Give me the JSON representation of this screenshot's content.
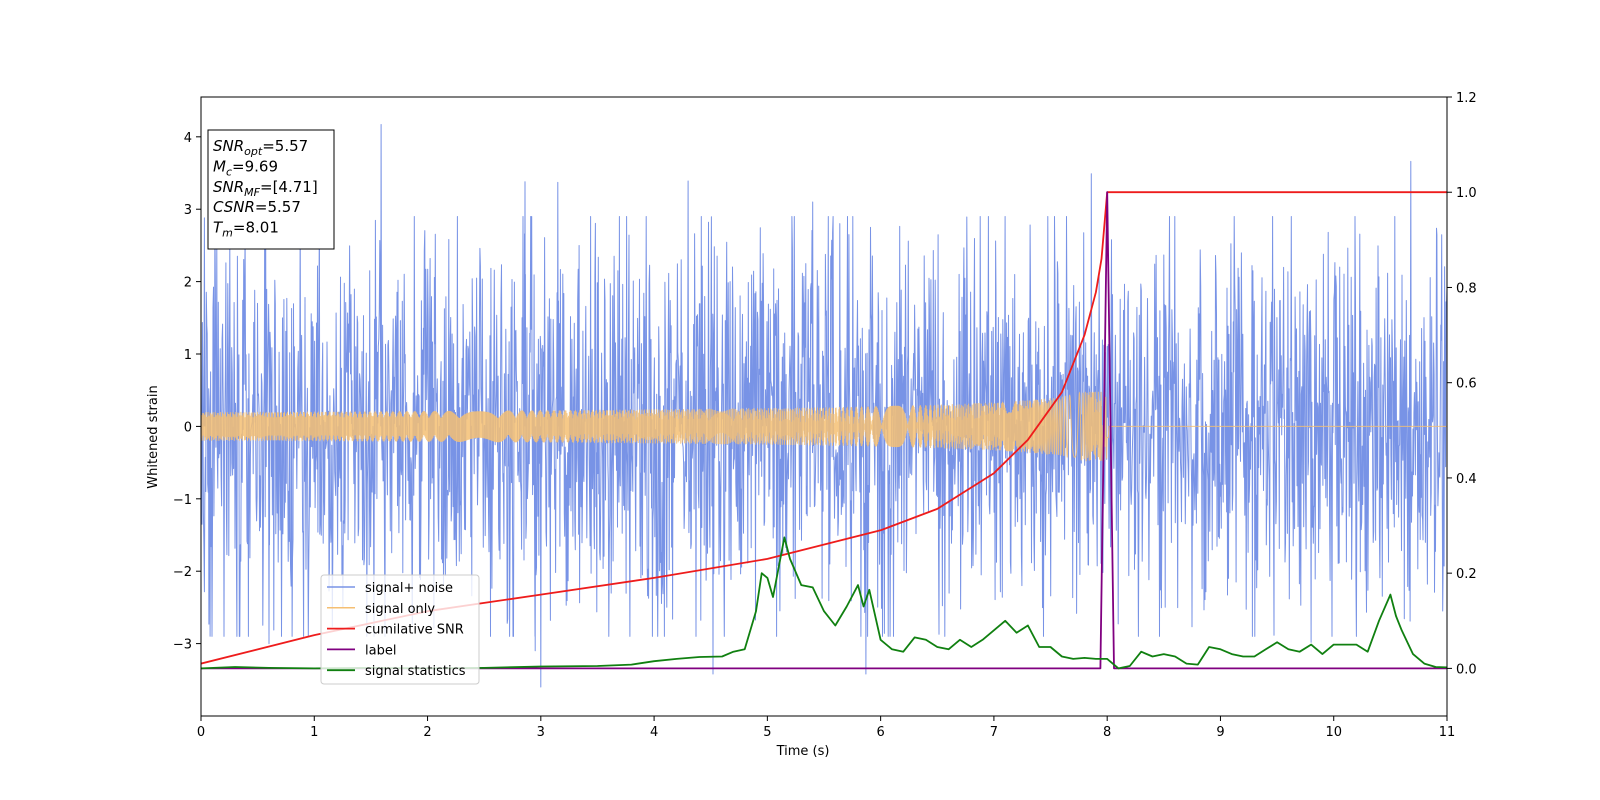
{
  "chart_data": {
    "type": "line",
    "xlabel": "Time (s)",
    "ylabel": "Whitened strain",
    "xlim": [
      0,
      11
    ],
    "ylim": [
      -4.0,
      4.55
    ],
    "y2lim": [
      -0.1,
      1.2
    ],
    "x_ticks": [
      "0",
      "1",
      "2",
      "3",
      "4",
      "5",
      "6",
      "7",
      "8",
      "9",
      "10",
      "11"
    ],
    "y_ticks": [
      "−3",
      "−2",
      "−1",
      "0",
      "1",
      "2",
      "3",
      "4"
    ],
    "y2_ticks": [
      "0.0",
      "0.2",
      "0.4",
      "0.6",
      "0.8",
      "1.0",
      "1.2"
    ],
    "legend_position": "lower-left",
    "info_box": [
      {
        "main": "SNR",
        "sub": "opt",
        "value": "=5.57"
      },
      {
        "main": "M",
        "sub": "c",
        "value": "=9.69"
      },
      {
        "main": "SNR",
        "sub": "MF",
        "value": "=[4.71]"
      },
      {
        "main": "CSNR",
        "sub": "",
        "value": "=5.57"
      },
      {
        "main": "T",
        "sub": "m",
        "value": "=8.01"
      }
    ],
    "series": [
      {
        "name": "signal+ noise",
        "color": "#7893e6",
        "axis": "left",
        "style": "noise",
        "duration": 11,
        "typical_amplitude": 1.8,
        "spikes": [
          {
            "x": 1.59,
            "y": 4.17
          },
          {
            "x": 10.68,
            "y": 3.66
          },
          {
            "x": 0.03,
            "y": 2.88
          },
          {
            "x": 2.86,
            "y": 3.38
          },
          {
            "x": 3.15,
            "y": 3.37
          },
          {
            "x": 4.3,
            "y": 3.39
          },
          {
            "x": 5.4,
            "y": 3.1
          },
          {
            "x": 7.86,
            "y": 3.49
          },
          {
            "x": 3.0,
            "y": -3.6
          },
          {
            "x": 4.52,
            "y": -3.42
          },
          {
            "x": 5.87,
            "y": -3.42
          },
          {
            "x": 0.07,
            "y": -2.73
          },
          {
            "x": 0.6,
            "y": -3.0
          },
          {
            "x": 2.95,
            "y": -3.1
          },
          {
            "x": 9.8,
            "y": -2.98
          }
        ]
      },
      {
        "name": "signal only",
        "color": "#f5bf73",
        "axis": "left",
        "style": "chirp",
        "merger_time": 8.01,
        "peak_amplitude": 0.48
      },
      {
        "name": "cumilative SNR",
        "color": "#ee1c1c",
        "axis": "right",
        "points": [
          [
            0,
            0.01
          ],
          [
            1,
            0.07
          ],
          [
            2,
            0.12
          ],
          [
            3,
            0.155
          ],
          [
            4,
            0.19
          ],
          [
            5,
            0.23
          ],
          [
            6,
            0.29
          ],
          [
            6.5,
            0.335
          ],
          [
            7,
            0.41
          ],
          [
            7.3,
            0.48
          ],
          [
            7.6,
            0.58
          ],
          [
            7.8,
            0.7
          ],
          [
            7.9,
            0.79
          ],
          [
            7.95,
            0.86
          ],
          [
            8.0,
            1.0
          ],
          [
            11,
            1.0
          ]
        ]
      },
      {
        "name": "label",
        "color": "#800080",
        "axis": "right",
        "points": [
          [
            0,
            0
          ],
          [
            7.94,
            0
          ],
          [
            8.0,
            1.0
          ],
          [
            8.06,
            0
          ],
          [
            11,
            0
          ]
        ]
      },
      {
        "name": "signal statistics",
        "color": "#108010",
        "axis": "right",
        "points": [
          [
            0,
            0.0
          ],
          [
            0.3,
            0.003
          ],
          [
            0.6,
            0.001
          ],
          [
            1.0,
            0.0
          ],
          [
            1.5,
            0.001
          ],
          [
            2.0,
            0.0
          ],
          [
            2.5,
            0.001
          ],
          [
            3.0,
            0.004
          ],
          [
            3.5,
            0.005
          ],
          [
            3.8,
            0.008
          ],
          [
            4.0,
            0.015
          ],
          [
            4.2,
            0.02
          ],
          [
            4.4,
            0.024
          ],
          [
            4.6,
            0.025
          ],
          [
            4.7,
            0.035
          ],
          [
            4.8,
            0.04
          ],
          [
            4.9,
            0.12
          ],
          [
            4.95,
            0.2
          ],
          [
            5.0,
            0.19
          ],
          [
            5.05,
            0.15
          ],
          [
            5.15,
            0.275
          ],
          [
            5.2,
            0.23
          ],
          [
            5.3,
            0.175
          ],
          [
            5.4,
            0.17
          ],
          [
            5.5,
            0.12
          ],
          [
            5.6,
            0.09
          ],
          [
            5.7,
            0.13
          ],
          [
            5.8,
            0.175
          ],
          [
            5.85,
            0.13
          ],
          [
            5.9,
            0.165
          ],
          [
            6.0,
            0.06
          ],
          [
            6.1,
            0.04
          ],
          [
            6.2,
            0.035
          ],
          [
            6.3,
            0.065
          ],
          [
            6.4,
            0.06
          ],
          [
            6.5,
            0.045
          ],
          [
            6.6,
            0.04
          ],
          [
            6.7,
            0.06
          ],
          [
            6.8,
            0.045
          ],
          [
            6.9,
            0.06
          ],
          [
            7.0,
            0.08
          ],
          [
            7.1,
            0.1
          ],
          [
            7.2,
            0.075
          ],
          [
            7.3,
            0.09
          ],
          [
            7.4,
            0.045
          ],
          [
            7.5,
            0.045
          ],
          [
            7.6,
            0.025
          ],
          [
            7.7,
            0.02
          ],
          [
            7.8,
            0.022
          ],
          [
            7.9,
            0.02
          ],
          [
            8.0,
            0.02
          ],
          [
            8.1,
            0.0
          ],
          [
            8.2,
            0.005
          ],
          [
            8.3,
            0.035
          ],
          [
            8.4,
            0.025
          ],
          [
            8.5,
            0.03
          ],
          [
            8.6,
            0.025
          ],
          [
            8.7,
            0.01
          ],
          [
            8.8,
            0.008
          ],
          [
            8.9,
            0.045
          ],
          [
            9.0,
            0.04
          ],
          [
            9.1,
            0.03
          ],
          [
            9.2,
            0.025
          ],
          [
            9.3,
            0.025
          ],
          [
            9.4,
            0.04
          ],
          [
            9.5,
            0.055
          ],
          [
            9.6,
            0.04
          ],
          [
            9.7,
            0.035
          ],
          [
            9.8,
            0.05
          ],
          [
            9.9,
            0.03
          ],
          [
            10.0,
            0.05
          ],
          [
            10.1,
            0.05
          ],
          [
            10.2,
            0.05
          ],
          [
            10.3,
            0.035
          ],
          [
            10.4,
            0.1
          ],
          [
            10.5,
            0.155
          ],
          [
            10.55,
            0.11
          ],
          [
            10.6,
            0.08
          ],
          [
            10.7,
            0.03
          ],
          [
            10.8,
            0.01
          ],
          [
            10.9,
            0.003
          ],
          [
            11.0,
            0.002
          ]
        ]
      }
    ]
  }
}
